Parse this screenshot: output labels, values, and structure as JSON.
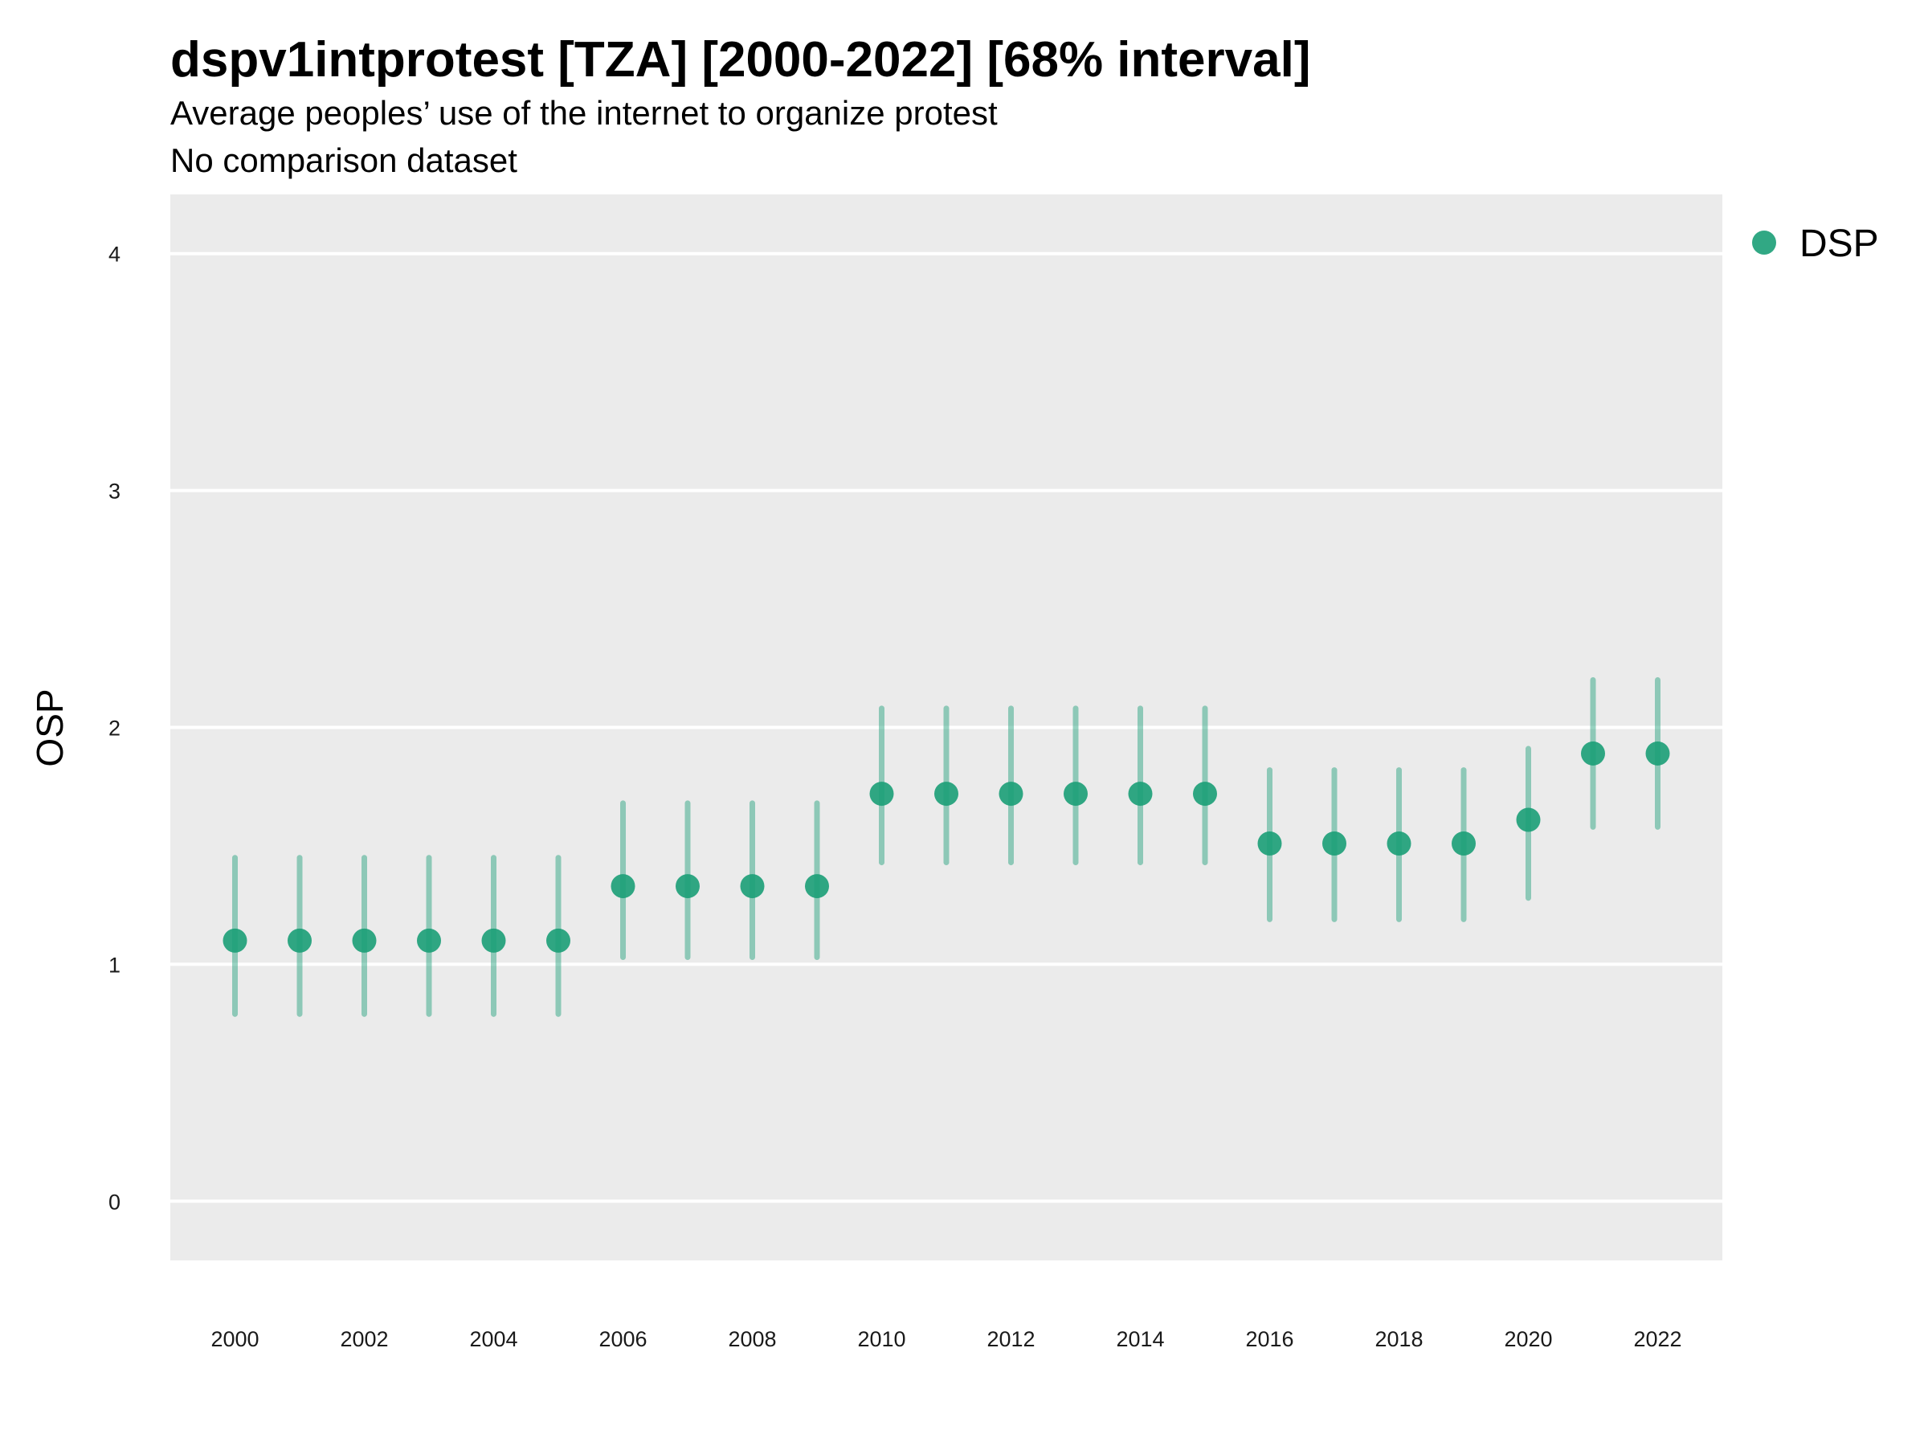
{
  "chart_data": {
    "type": "scatter",
    "title": "dspv1intprotest [TZA] [2000-2022] [68% interval]",
    "subtitle": "Average peoples’ use of the internet to organize protest",
    "caption": "No comparison dataset",
    "xlabel": "",
    "ylabel": "OSP",
    "xlim": [
      1999,
      2023
    ],
    "ylim": [
      -0.25,
      4.25
    ],
    "x_ticks": [
      2000,
      2002,
      2004,
      2006,
      2008,
      2010,
      2012,
      2014,
      2016,
      2018,
      2020,
      2022
    ],
    "y_ticks": [
      0,
      1,
      2,
      3,
      4
    ],
    "grid": true,
    "legend_position": "right",
    "series": [
      {
        "name": "DSP",
        "color": "#1b9e77",
        "x": [
          2000,
          2001,
          2002,
          2003,
          2004,
          2005,
          2006,
          2007,
          2008,
          2009,
          2010,
          2011,
          2012,
          2013,
          2014,
          2015,
          2016,
          2017,
          2018,
          2019,
          2020,
          2021,
          2022
        ],
        "values": [
          1.1,
          1.1,
          1.1,
          1.1,
          1.1,
          1.1,
          1.33,
          1.33,
          1.33,
          1.33,
          1.72,
          1.72,
          1.72,
          1.72,
          1.72,
          1.72,
          1.51,
          1.51,
          1.51,
          1.51,
          1.61,
          1.89,
          1.89
        ],
        "lower": [
          0.79,
          0.79,
          0.79,
          0.79,
          0.79,
          0.79,
          1.03,
          1.03,
          1.03,
          1.03,
          1.43,
          1.43,
          1.43,
          1.43,
          1.43,
          1.43,
          1.19,
          1.19,
          1.19,
          1.19,
          1.28,
          1.58,
          1.58
        ],
        "upper": [
          1.45,
          1.45,
          1.45,
          1.45,
          1.45,
          1.45,
          1.68,
          1.68,
          1.68,
          1.68,
          2.08,
          2.08,
          2.08,
          2.08,
          2.08,
          2.08,
          1.82,
          1.82,
          1.82,
          1.82,
          1.91,
          2.2,
          2.2
        ]
      }
    ]
  }
}
